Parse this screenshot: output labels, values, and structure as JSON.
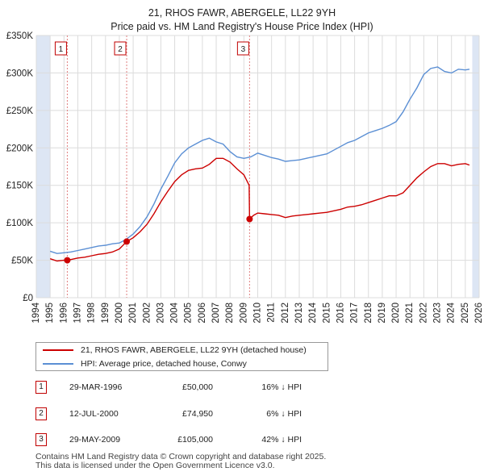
{
  "chart_data": {
    "type": "line",
    "title": "21, RHOS FAWR, ABERGELE, LL22 9YH",
    "subtitle": "Price paid vs. HM Land Registry's House Price Index (HPI)",
    "xlim": [
      1994,
      2026
    ],
    "ylim": [
      0,
      350000
    ],
    "x_ticks": [
      1994,
      1995,
      1996,
      1997,
      1998,
      1999,
      2000,
      2001,
      2002,
      2003,
      2004,
      2005,
      2006,
      2007,
      2008,
      2009,
      2010,
      2011,
      2012,
      2013,
      2014,
      2015,
      2016,
      2017,
      2018,
      2019,
      2020,
      2021,
      2022,
      2023,
      2024,
      2025,
      2026
    ],
    "y_ticks": [
      0,
      50000,
      100000,
      150000,
      200000,
      250000,
      300000,
      350000
    ],
    "y_tick_labels": [
      "£0",
      "£50K",
      "£100K",
      "£150K",
      "£200K",
      "£250K",
      "£300K",
      "£350K"
    ],
    "data_range": [
      1995.0,
      2025.5
    ],
    "series": [
      {
        "name": "21, RHOS FAWR, ABERGELE, LL22 9YH (detached house)",
        "color": "#cc0000",
        "x": [
          1995.0,
          1995.5,
          1996.0,
          1996.24,
          1996.5,
          1997.0,
          1997.5,
          1998.0,
          1998.5,
          1999.0,
          1999.5,
          2000.0,
          2000.53,
          2001.0,
          2001.5,
          2002.0,
          2002.5,
          2003.0,
          2003.5,
          2004.0,
          2004.5,
          2005.0,
          2005.5,
          2006.0,
          2006.5,
          2007.0,
          2007.5,
          2008.0,
          2008.5,
          2009.0,
          2009.38,
          2009.41,
          2009.7,
          2010.0,
          2010.5,
          2011.0,
          2011.5,
          2012.0,
          2012.5,
          2013.0,
          2013.5,
          2014.0,
          2014.5,
          2015.0,
          2015.5,
          2016.0,
          2016.5,
          2017.0,
          2017.5,
          2018.0,
          2018.5,
          2019.0,
          2019.5,
          2020.0,
          2020.5,
          2021.0,
          2021.5,
          2022.0,
          2022.5,
          2023.0,
          2023.5,
          2024.0,
          2024.5,
          2025.0,
          2025.3
        ],
        "y": [
          52000,
          49000,
          50000,
          50000,
          51000,
          53000,
          54000,
          56000,
          58000,
          59000,
          61000,
          65000,
          74950,
          80000,
          88000,
          98000,
          112000,
          128000,
          142000,
          155000,
          164000,
          170000,
          172000,
          173000,
          178000,
          186000,
          186000,
          181000,
          172000,
          164000,
          150000,
          105000,
          110000,
          113000,
          112000,
          111000,
          110000,
          107000,
          109000,
          110000,
          111000,
          112000,
          113000,
          114000,
          116000,
          118000,
          121000,
          122000,
          124000,
          127000,
          130000,
          133000,
          136000,
          136000,
          140000,
          150000,
          160000,
          168000,
          175000,
          179000,
          179000,
          176000,
          178000,
          179000,
          177000
        ]
      },
      {
        "name": "HPI: Average price, detached house, Conwy",
        "color": "#5b8fd4",
        "x": [
          1995.0,
          1995.5,
          1996.0,
          1996.5,
          1997.0,
          1997.5,
          1998.0,
          1998.5,
          1999.0,
          1999.5,
          2000.0,
          2000.5,
          2001.0,
          2001.5,
          2002.0,
          2002.5,
          2003.0,
          2003.5,
          2004.0,
          2004.5,
          2005.0,
          2005.5,
          2006.0,
          2006.5,
          2007.0,
          2007.5,
          2008.0,
          2008.5,
          2009.0,
          2009.5,
          2010.0,
          2010.5,
          2011.0,
          2011.5,
          2012.0,
          2012.5,
          2013.0,
          2013.5,
          2014.0,
          2014.5,
          2015.0,
          2015.5,
          2016.0,
          2016.5,
          2017.0,
          2017.5,
          2018.0,
          2018.5,
          2019.0,
          2019.5,
          2020.0,
          2020.5,
          2021.0,
          2021.5,
          2022.0,
          2022.5,
          2023.0,
          2023.5,
          2024.0,
          2024.5,
          2025.0,
          2025.3
        ],
        "y": [
          62000,
          59000,
          60000,
          61000,
          63000,
          65000,
          67000,
          69000,
          70000,
          72000,
          73000,
          78000,
          85000,
          95000,
          108000,
          125000,
          145000,
          162000,
          180000,
          192000,
          200000,
          205000,
          210000,
          213000,
          208000,
          205000,
          195000,
          188000,
          186000,
          188000,
          193000,
          190000,
          187000,
          185000,
          182000,
          183000,
          184000,
          186000,
          188000,
          190000,
          192000,
          197000,
          202000,
          207000,
          210000,
          215000,
          220000,
          223000,
          226000,
          230000,
          235000,
          248000,
          265000,
          280000,
          298000,
          306000,
          308000,
          302000,
          300000,
          305000,
          304000,
          305000
        ]
      }
    ],
    "markers": [
      {
        "label": "1",
        "x": 1996.24,
        "y": 50000
      },
      {
        "label": "2",
        "x": 2000.53,
        "y": 74950
      },
      {
        "label": "3",
        "x": 2009.41,
        "y": 105000
      }
    ]
  },
  "legend": {
    "property": "21, RHOS FAWR, ABERGELE, LL22 9YH (detached house)",
    "hpi": "HPI: Average price, detached house, Conwy"
  },
  "transactions": [
    {
      "num": "1",
      "date": "29-MAR-1996",
      "price": "£50,000",
      "hpi": "16% ↓ HPI"
    },
    {
      "num": "2",
      "date": "12-JUL-2000",
      "price": "£74,950",
      "hpi": "6% ↓ HPI"
    },
    {
      "num": "3",
      "date": "29-MAY-2009",
      "price": "£105,000",
      "hpi": "42% ↓ HPI"
    }
  ],
  "footer": {
    "line1": "Contains HM Land Registry data © Crown copyright and database right 2025.",
    "line2": "This data is licensed under the Open Government Licence v3.0."
  },
  "colors": {
    "property": "#cc0000",
    "hpi": "#5b8fd4",
    "shade": "#dde6f4",
    "grid": "#dcdcdc",
    "marker_line": "#e08080"
  }
}
